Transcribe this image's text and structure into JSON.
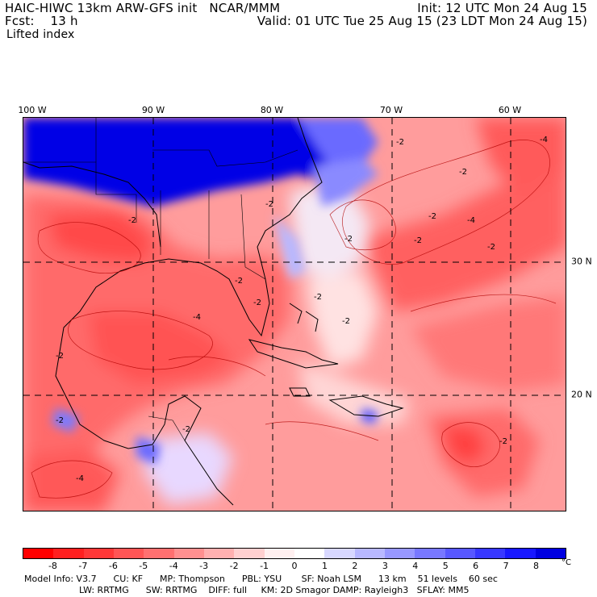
{
  "header": {
    "model_title": "HAIC-HIWC 13km ARW-GFS init",
    "org": "NCAR/MMM",
    "init": "Init: 12 UTC Mon 24 Aug 15",
    "fcst_label": "Fcst:",
    "fcst_value": "13 h",
    "valid": "Valid: 01 UTC Tue 25 Aug 15 (23 LDT Mon 24 Aug 15)",
    "field": "Lifted index"
  },
  "map": {
    "lon_labels": [
      "100 W",
      "90 W",
      "80 W",
      "70 W",
      "60 W"
    ],
    "lat_labels": [
      "30 N",
      "20 N"
    ],
    "contour_labels": [
      "-2",
      "-2",
      "-2",
      "-2",
      "-2",
      "-2",
      "-2",
      "-4",
      "-2",
      "-2",
      "-2",
      "-2",
      "-4",
      "-4",
      "-2",
      "-2",
      "-2",
      "-2",
      "-2",
      "-4"
    ]
  },
  "colorbar": {
    "ticks": [
      "-8",
      "-7",
      "-6",
      "-5",
      "-4",
      "-3",
      "-2",
      "-1",
      "0",
      "1",
      "2",
      "3",
      "4",
      "5",
      "6",
      "7",
      "8"
    ],
    "unit": "°C",
    "colors": [
      "#ff0000",
      "#ff2020",
      "#ff3838",
      "#ff5555",
      "#ff7070",
      "#ff9090",
      "#ffb0b0",
      "#ffd0d0",
      "#fff0f0",
      "#ffffff",
      "#d8d8ff",
      "#b8b8ff",
      "#9898ff",
      "#7878ff",
      "#5858ff",
      "#3838ff",
      "#1818ff",
      "#0000e0"
    ]
  },
  "footer": {
    "line1": "Model Info: V3.7      CU: KF      MP: Thompson      PBL: YSU       SF: Noah LSM      13 km    51 levels    60 sec",
    "line2": "LW: RRTMG      SW: RRTMG    DIFF: full     KM: 2D Smagor DAMP: Rayleigh3   SFLAY: MM5"
  },
  "colors": {
    "deep_blue": "#0000e6",
    "mid_blue": "#6a6aff",
    "light_red": "#ffb4b4",
    "mid_red": "#ff8080",
    "deep_red": "#ff5050"
  }
}
